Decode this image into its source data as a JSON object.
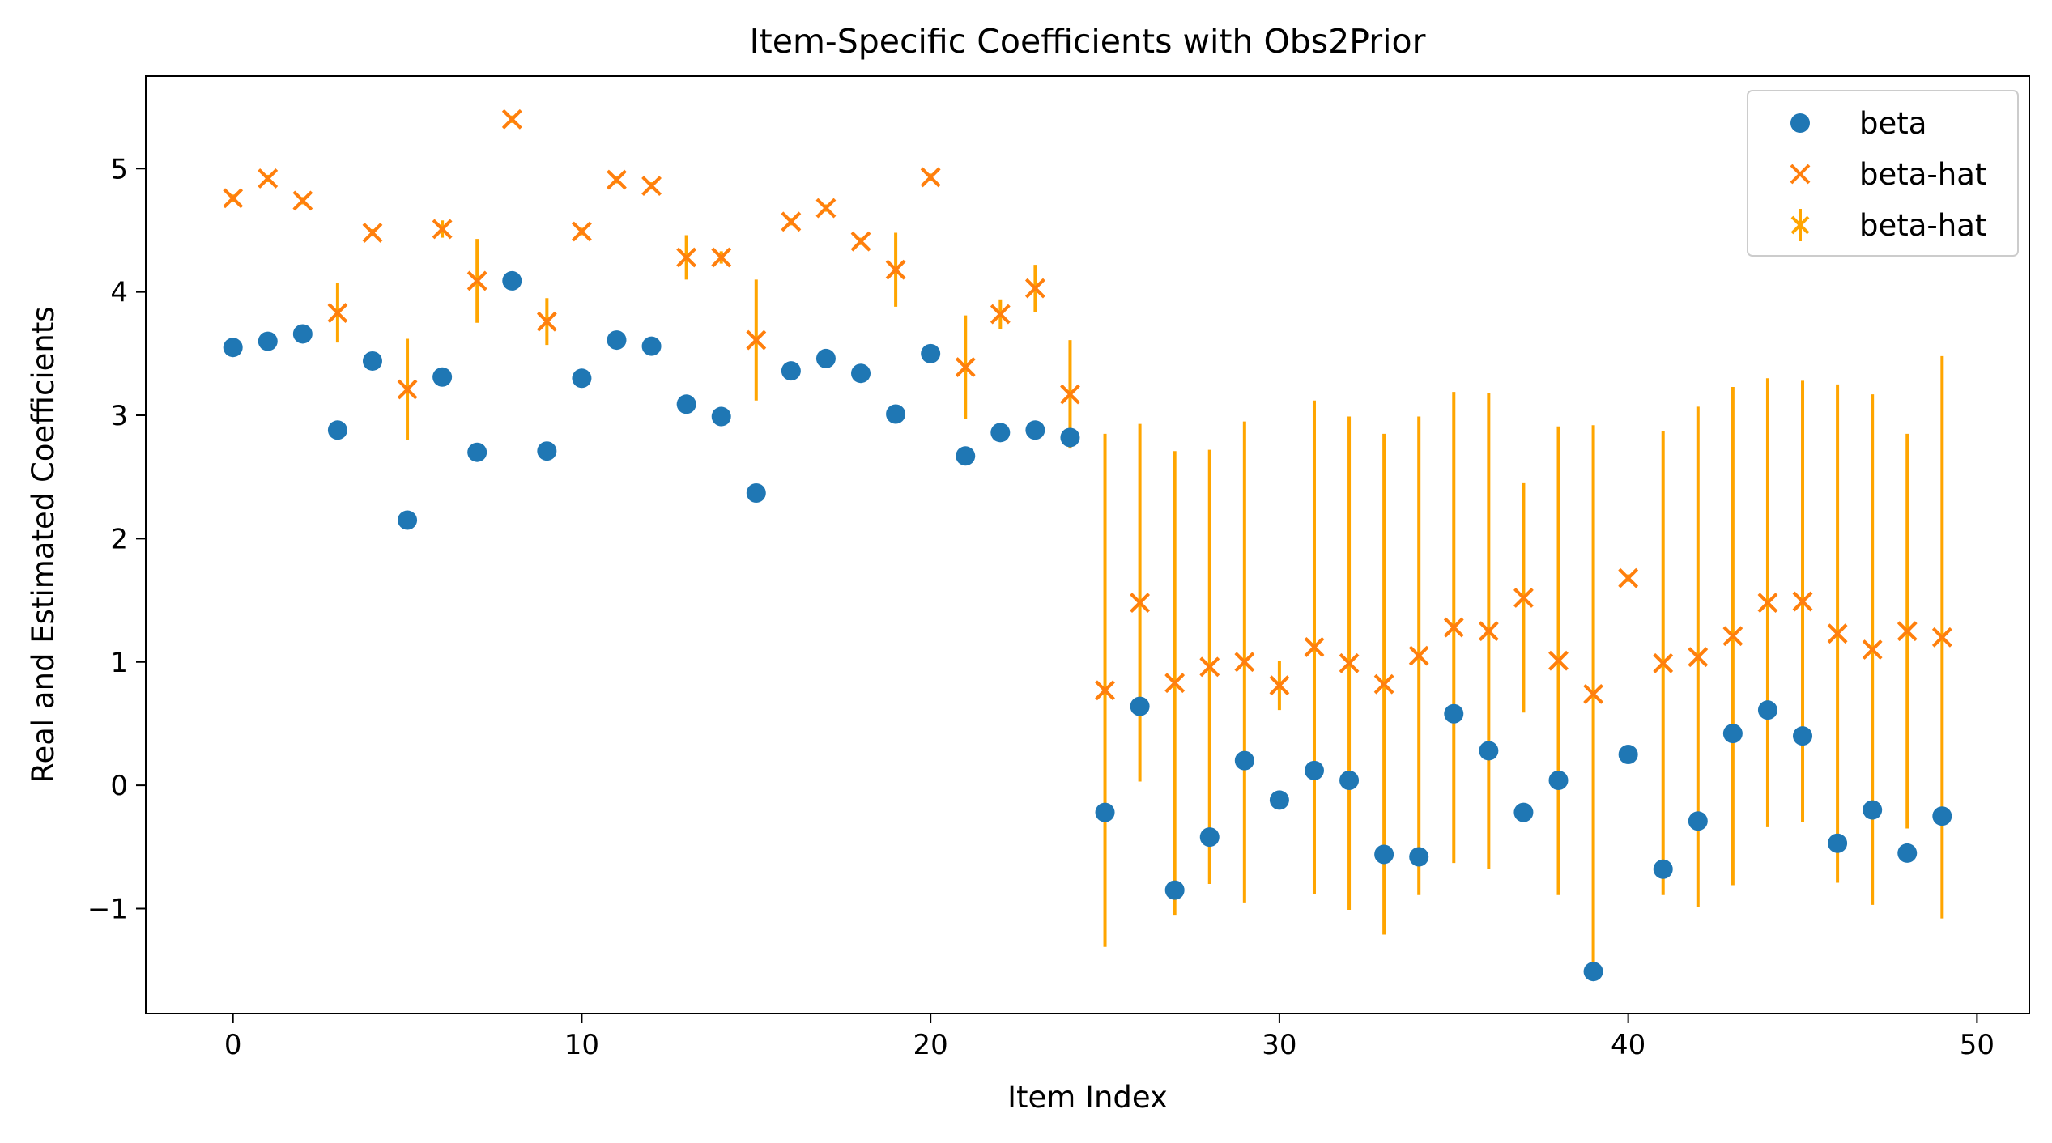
{
  "chart_data": {
    "type": "scatter",
    "title": "Item-Specific Coefficients with Obs2Prior",
    "xlabel": "Item Index",
    "ylabel": "Real and Estimated Coefficients",
    "xlim": [
      -2.5,
      51.5
    ],
    "ylim": [
      -1.85,
      5.75
    ],
    "xticks": [
      0,
      10,
      20,
      30,
      40,
      50
    ],
    "xtick_labels": [
      "0",
      "10",
      "20",
      "30",
      "40",
      "50"
    ],
    "yticks": [
      -1,
      0,
      1,
      2,
      3,
      4,
      5
    ],
    "ytick_labels": [
      "−1",
      "0",
      "1",
      "2",
      "3",
      "4",
      "5"
    ],
    "grid": false,
    "legend_position": "top-right",
    "x": [
      0,
      1,
      2,
      3,
      4,
      5,
      6,
      7,
      8,
      9,
      10,
      11,
      12,
      13,
      14,
      15,
      16,
      17,
      18,
      19,
      20,
      21,
      22,
      23,
      24,
      25,
      26,
      27,
      28,
      29,
      30,
      31,
      32,
      33,
      34,
      35,
      36,
      37,
      38,
      39,
      40,
      41,
      42,
      43,
      44,
      45,
      46,
      47,
      48,
      49
    ],
    "series": [
      {
        "name": "beta",
        "marker": "circle",
        "color": "#1f77b4",
        "values": [
          3.55,
          3.6,
          3.66,
          2.88,
          3.44,
          2.15,
          3.31,
          2.7,
          4.09,
          2.71,
          3.3,
          3.61,
          3.56,
          3.09,
          2.99,
          2.37,
          3.36,
          3.46,
          3.34,
          3.01,
          3.5,
          2.67,
          2.86,
          2.88,
          2.82,
          -0.22,
          0.64,
          -0.85,
          -0.42,
          0.2,
          -0.12,
          0.12,
          0.04,
          -0.56,
          -0.58,
          0.58,
          0.28,
          -0.22,
          0.04,
          -1.51,
          0.25,
          -0.68,
          -0.29,
          0.42,
          0.61,
          0.4,
          -0.47,
          -0.2,
          -0.55,
          -0.25
        ]
      },
      {
        "name": "beta-hat",
        "marker": "x",
        "color": "#ff7f0e",
        "values": [
          4.76,
          4.92,
          4.74,
          3.83,
          4.48,
          3.21,
          4.51,
          4.09,
          5.4,
          3.76,
          4.49,
          4.91,
          4.86,
          4.28,
          4.28,
          3.61,
          4.57,
          4.68,
          4.41,
          4.18,
          4.93,
          3.39,
          3.82,
          4.03,
          3.17,
          0.77,
          1.48,
          0.83,
          0.96,
          1.0,
          0.81,
          1.12,
          0.99,
          0.82,
          1.05,
          1.28,
          1.25,
          1.52,
          1.01,
          0.74,
          1.68,
          0.99,
          1.04,
          1.21,
          1.48,
          1.49,
          1.23,
          1.1,
          1.25,
          1.2
        ]
      },
      {
        "name": "beta-hat",
        "marker": "errorbar",
        "color": "#ffa500",
        "values": [
          4.76,
          4.92,
          4.74,
          3.83,
          4.48,
          3.21,
          4.51,
          4.09,
          5.4,
          3.76,
          4.49,
          4.91,
          4.86,
          4.28,
          4.28,
          3.61,
          4.57,
          4.68,
          4.41,
          4.18,
          4.93,
          3.39,
          3.82,
          4.03,
          3.17,
          0.77,
          1.48,
          0.83,
          0.96,
          1.0,
          0.81,
          1.12,
          0.99,
          0.82,
          1.05,
          1.28,
          1.25,
          1.52,
          1.01,
          0.74,
          1.68,
          0.99,
          1.04,
          1.21,
          1.48,
          1.49,
          1.23,
          1.1,
          1.25,
          1.2
        ],
        "errors": [
          0.03,
          0.03,
          0.03,
          0.24,
          0.03,
          0.41,
          0.07,
          0.34,
          0.03,
          0.19,
          0.03,
          0.03,
          0.03,
          0.18,
          0.05,
          0.49,
          0.03,
          0.03,
          0.03,
          0.3,
          0.03,
          0.42,
          0.12,
          0.19,
          0.44,
          2.08,
          1.45,
          1.88,
          1.76,
          1.95,
          0.2,
          2.0,
          2.0,
          2.03,
          1.94,
          1.91,
          1.93,
          0.93,
          1.9,
          2.18,
          0.03,
          1.88,
          2.03,
          2.02,
          1.82,
          1.79,
          2.02,
          2.07,
          1.6,
          2.28
        ]
      }
    ]
  }
}
